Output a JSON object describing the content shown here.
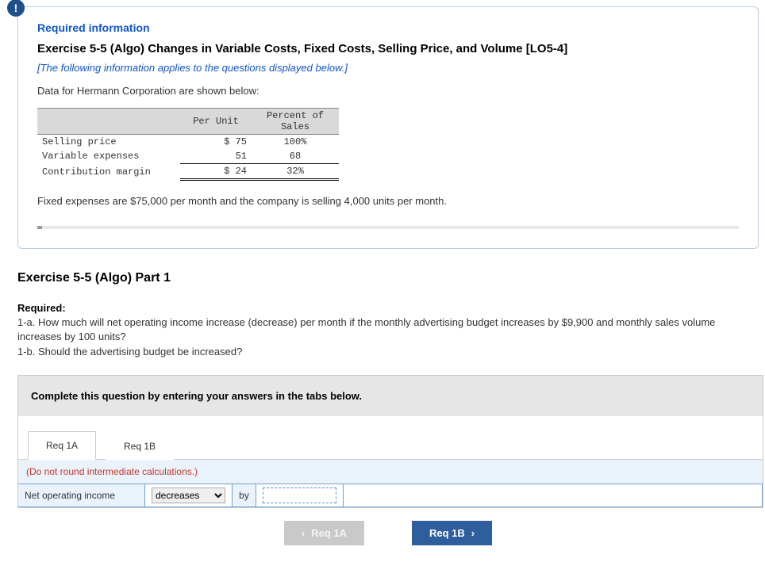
{
  "info": {
    "badge_glyph": "!",
    "required_info_label": "Required information",
    "exercise_title": "Exercise 5-5 (Algo) Changes in Variable Costs, Fixed Costs, Selling Price, and Volume [LO5-4]",
    "applies_note": "[The following information applies to the questions displayed below.]",
    "data_intro": "Data for Hermann Corporation are shown below:",
    "table": {
      "headers": {
        "blank": "",
        "per_unit": "Per Unit",
        "pct_of_sales": "Percent of\nSales"
      },
      "rows": [
        {
          "label": "Selling price",
          "per_unit": "$ 75",
          "pct": "100%"
        },
        {
          "label": "Variable expenses",
          "per_unit": "51",
          "pct": "68"
        },
        {
          "label": "Contribution margin",
          "per_unit": "$ 24",
          "pct": "32%"
        }
      ]
    },
    "fixed_note": "Fixed expenses are $75,000 per month and the company is selling 4,000 units per month."
  },
  "part": {
    "title": "Exercise 5-5 (Algo) Part 1",
    "required_heading": "Required:",
    "q1a": "1-a. How much will net operating income increase (decrease) per month if the monthly advertising budget increases by $9,900 and monthly sales volume increases by 100 units?",
    "q1b": "1-b. Should the advertising budget be increased?"
  },
  "answer": {
    "instruction": "Complete this question by entering your answers in the tabs below.",
    "tabs": [
      {
        "id": "req1a",
        "label": "Req 1A",
        "active": true
      },
      {
        "id": "req1b",
        "label": "Req 1B",
        "active": false
      }
    ],
    "hint": "(Do not round intermediate calculations.)",
    "row": {
      "label": "Net operating income",
      "select_value": "decreases",
      "by": "by",
      "input_value": ""
    },
    "nav": {
      "prev": {
        "label": "Req 1A",
        "enabled": false
      },
      "next": {
        "label": "Req 1B",
        "enabled": true
      }
    }
  },
  "colors": {
    "brand_blue": "#1f4e8c",
    "link_blue": "#1155cc",
    "light_blue_bg": "#eaf2fb",
    "table_header_bg": "#d9d9d9",
    "nav_enabled_bg": "#2e5e9e",
    "nav_disabled_bg": "#c9c9c9",
    "hint_red": "#c0392b"
  }
}
